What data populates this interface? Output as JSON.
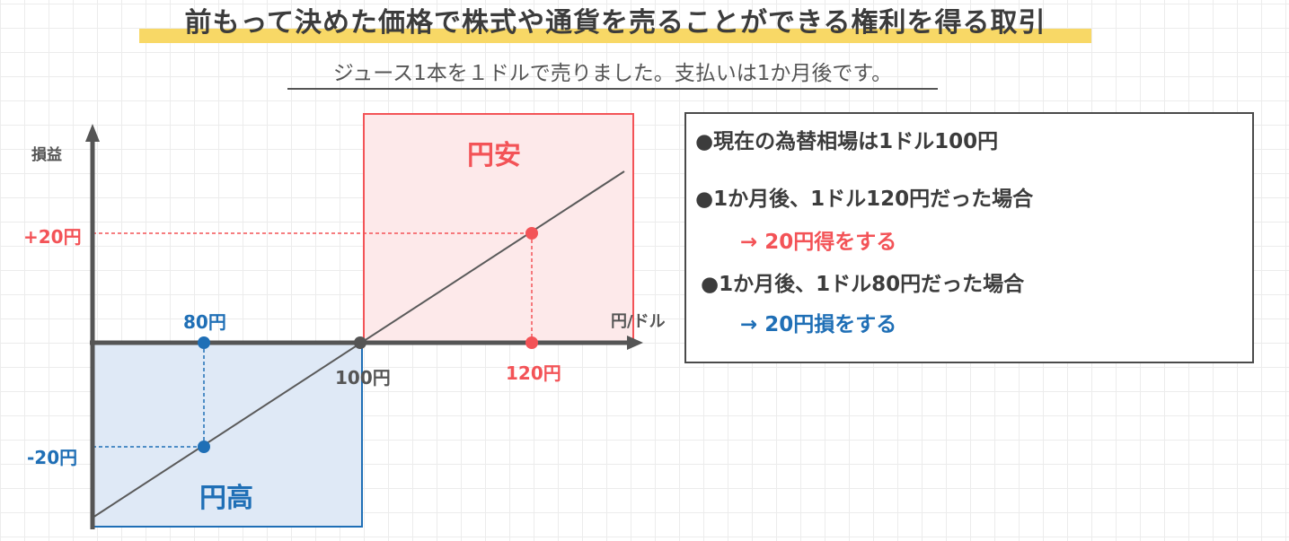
{
  "title": "前もって決めた価格で株式や通貨を売ることができる権利を得る取引",
  "subtitle": "ジュース1本を１ドルで売りました。支払いは1か月後です。",
  "chart": {
    "y_axis_label": "損益",
    "x_axis_label": "円/ドル",
    "region_yen_weak": "円安",
    "region_yen_strong": "円高",
    "plus_label": "+20円",
    "minus_label": "-20円",
    "strike_label": "100円",
    "high_label": "120円",
    "low_label": "80円",
    "colors": {
      "red": "#f35357",
      "blue": "#1f6fb6",
      "axis": "#555555"
    }
  },
  "chart_data": {
    "type": "line",
    "x": [
      80,
      100,
      120
    ],
    "y": [
      -20,
      0,
      20
    ],
    "xlabel": "円/ドル",
    "ylabel": "損益",
    "annotations": [
      "円安",
      "円高",
      "+20円",
      "-20円",
      "80円",
      "100円",
      "120円"
    ]
  },
  "info": {
    "line1": "●現在の為替相場は1ドル100円",
    "line2": "●1か月後、1ドル120円だった場合",
    "line3": "→ 20円得をする",
    "line4": "●1か月後、1ドル80円だった場合",
    "line5": "→ 20円損をする"
  }
}
